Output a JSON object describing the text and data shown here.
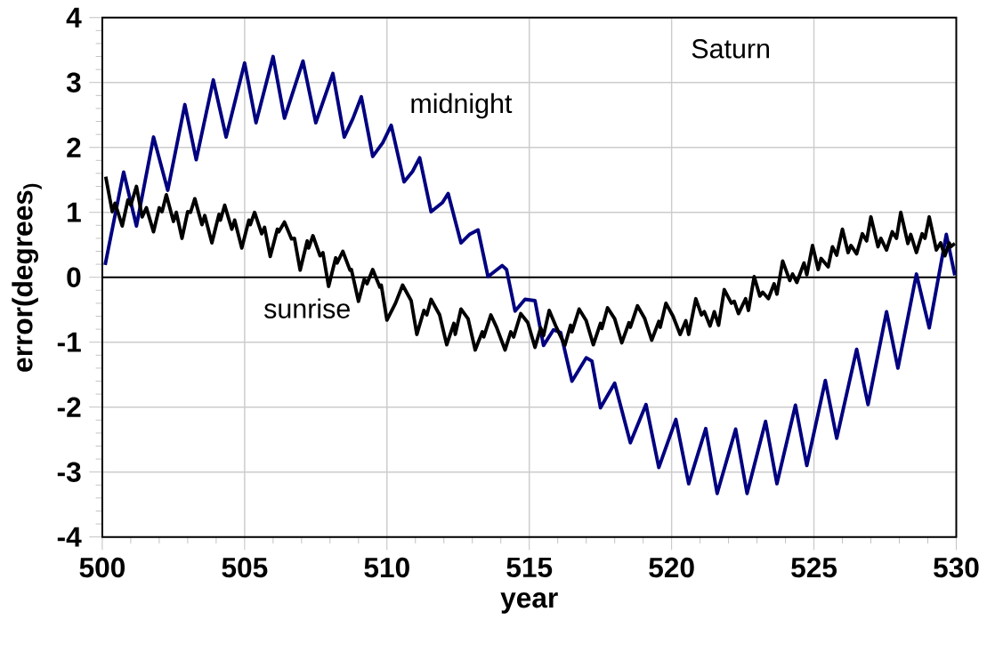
{
  "chart_data": {
    "type": "line",
    "xlabel": "year",
    "ylabel": "error(degrees$_{)}$",
    "annotations": [
      "Saturn"
    ],
    "xlim": [
      500,
      530
    ],
    "ylim": [
      -4,
      4
    ],
    "xticks": [
      500,
      505,
      510,
      515,
      520,
      525,
      530
    ],
    "yticks": [
      -4,
      -3,
      -2,
      -1,
      0,
      1,
      2,
      3,
      4
    ],
    "grid": true,
    "legend": false,
    "marker": "none",
    "line_style": "solid",
    "ref_lines": [
      {
        "axis": "y",
        "value": 0,
        "color": "#000000"
      }
    ],
    "series": [
      {
        "name": "midnight",
        "color": "#000080",
        "x": [
          500.1,
          500.75,
          501.2,
          501.8,
          502.3,
          502.9,
          503.3,
          503.9,
          504.35,
          505.0,
          505.4,
          506.0,
          506.4,
          507.05,
          507.5,
          508.1,
          508.5,
          508.8,
          509.1,
          509.5,
          509.85,
          510.15,
          510.6,
          510.9,
          511.15,
          511.55,
          511.95,
          512.15,
          512.6,
          512.9,
          513.2,
          513.55,
          514.05,
          514.2,
          514.5,
          514.85,
          515.2,
          515.5,
          515.85,
          516.1,
          516.5,
          517.0,
          517.2,
          517.5,
          518.0,
          518.55,
          519.1,
          519.55,
          520.15,
          520.6,
          521.2,
          521.6,
          522.25,
          522.65,
          523.3,
          523.7,
          524.35,
          524.75,
          525.4,
          525.8,
          526.5,
          526.9,
          527.55,
          527.95,
          528.6,
          529.05,
          529.65,
          529.95
        ],
        "values": [
          0.19,
          1.62,
          0.79,
          2.16,
          1.34,
          2.66,
          1.81,
          3.04,
          2.16,
          3.3,
          2.38,
          3.4,
          2.45,
          3.33,
          2.38,
          3.14,
          2.16,
          2.44,
          2.78,
          1.86,
          2.07,
          2.34,
          1.47,
          1.63,
          1.84,
          1.01,
          1.15,
          1.29,
          0.53,
          0.66,
          0.73,
          0.01,
          0.18,
          0.12,
          -0.52,
          -0.34,
          -0.36,
          -1.05,
          -0.81,
          -0.85,
          -1.6,
          -1.24,
          -1.29,
          -2.01,
          -1.63,
          -2.55,
          -1.96,
          -2.93,
          -2.19,
          -3.18,
          -2.33,
          -3.33,
          -2.34,
          -3.33,
          -2.22,
          -3.18,
          -1.97,
          -2.9,
          -1.59,
          -2.48,
          -1.11,
          -1.96,
          -0.53,
          -1.4,
          0.05,
          -0.78,
          0.66,
          0.03
        ]
      },
      {
        "name": "sunrise",
        "color": "#000000",
        "x": [
          500.12,
          500.35,
          500.45,
          500.7,
          500.9,
          501.0,
          501.2,
          501.4,
          501.55,
          501.8,
          502.0,
          502.1,
          502.25,
          502.5,
          502.6,
          502.8,
          503.0,
          503.1,
          503.25,
          503.5,
          503.6,
          503.85,
          504.1,
          504.15,
          504.3,
          504.55,
          504.65,
          504.9,
          505.15,
          505.2,
          505.35,
          505.6,
          505.7,
          505.9,
          506.15,
          506.2,
          506.4,
          506.65,
          506.75,
          506.95,
          507.2,
          507.25,
          507.4,
          507.65,
          507.75,
          507.95,
          508.2,
          508.25,
          508.45,
          508.7,
          508.75,
          509.0,
          509.2,
          509.3,
          509.5,
          509.75,
          509.8,
          510.0,
          510.3,
          510.55,
          510.85,
          511.05,
          511.3,
          511.4,
          511.55,
          511.85,
          512.1,
          512.35,
          512.4,
          512.6,
          512.85,
          513.1,
          513.35,
          513.4,
          513.65,
          513.85,
          514.15,
          514.35,
          514.45,
          514.7,
          514.95,
          515.2,
          515.4,
          515.5,
          515.7,
          515.95,
          516.25,
          516.45,
          516.5,
          516.75,
          517.0,
          517.25,
          517.5,
          517.55,
          517.75,
          518.0,
          518.25,
          518.5,
          518.55,
          518.8,
          519.05,
          519.3,
          519.55,
          519.6,
          519.8,
          520.05,
          520.3,
          520.5,
          520.6,
          520.85,
          521.05,
          521.15,
          521.35,
          521.5,
          521.65,
          521.85,
          522.1,
          522.2,
          522.35,
          522.6,
          522.7,
          522.9,
          523.1,
          523.2,
          523.4,
          523.6,
          523.7,
          523.9,
          524.15,
          524.25,
          524.4,
          524.65,
          524.75,
          524.95,
          525.15,
          525.25,
          525.5,
          525.65,
          525.8,
          526.0,
          526.2,
          526.3,
          526.5,
          526.7,
          526.85,
          527.0,
          527.25,
          527.35,
          527.55,
          527.75,
          527.9,
          528.05,
          528.3,
          528.4,
          528.6,
          528.8,
          528.9,
          529.05,
          529.3,
          529.45,
          529.6,
          529.75,
          529.8,
          529.95
        ],
        "values": [
          1.55,
          1.01,
          1.14,
          0.79,
          1.19,
          1.11,
          1.4,
          0.93,
          1.07,
          0.7,
          1.07,
          1.01,
          1.27,
          0.86,
          1.0,
          0.6,
          1.01,
          1.0,
          1.21,
          0.81,
          0.95,
          0.53,
          0.97,
          0.88,
          1.11,
          0.74,
          0.88,
          0.45,
          0.88,
          0.81,
          1.0,
          0.67,
          0.77,
          0.32,
          0.74,
          0.7,
          0.85,
          0.59,
          0.6,
          0.11,
          0.56,
          0.45,
          0.64,
          0.33,
          0.38,
          -0.14,
          0.3,
          0.22,
          0.4,
          0.11,
          0.12,
          -0.37,
          -0.03,
          -0.1,
          0.12,
          -0.15,
          -0.12,
          -0.66,
          -0.4,
          -0.12,
          -0.36,
          -0.88,
          -0.51,
          -0.58,
          -0.34,
          -0.58,
          -1.04,
          -0.71,
          -0.88,
          -0.49,
          -0.64,
          -1.12,
          -0.84,
          -0.92,
          -0.58,
          -0.77,
          -1.12,
          -0.84,
          -0.92,
          -0.56,
          -0.7,
          -1.08,
          -0.78,
          -0.9,
          -0.51,
          -0.77,
          -1.05,
          -0.74,
          -0.84,
          -0.49,
          -0.67,
          -1.04,
          -0.71,
          -0.79,
          -0.47,
          -0.64,
          -1.01,
          -0.7,
          -0.77,
          -0.44,
          -0.63,
          -0.97,
          -0.68,
          -0.77,
          -0.4,
          -0.6,
          -0.88,
          -0.67,
          -0.88,
          -0.33,
          -0.58,
          -0.53,
          -0.75,
          -0.53,
          -0.74,
          -0.19,
          -0.4,
          -0.37,
          -0.56,
          -0.33,
          -0.51,
          0.01,
          -0.29,
          -0.23,
          -0.33,
          -0.1,
          -0.26,
          0.25,
          -0.05,
          0.05,
          -0.08,
          0.22,
          0.04,
          0.49,
          0.12,
          0.29,
          0.16,
          0.47,
          0.34,
          0.74,
          0.38,
          0.49,
          0.36,
          0.67,
          0.56,
          0.93,
          0.47,
          0.6,
          0.42,
          0.7,
          0.6,
          1.0,
          0.52,
          0.66,
          0.38,
          0.67,
          0.6,
          0.93,
          0.42,
          0.53,
          0.33,
          0.53,
          0.47,
          0.52
        ]
      }
    ]
  }
}
